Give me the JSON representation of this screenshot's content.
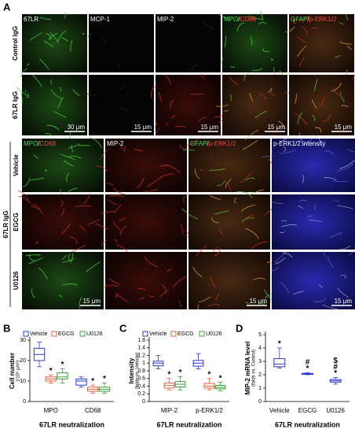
{
  "panel_a": {
    "label": "A",
    "top_columns": [
      [
        {
          "text": "67LR",
          "color": "#ffffff"
        }
      ],
      [
        {
          "text": "MCP-1",
          "color": "#ffffff"
        }
      ],
      [
        {
          "text": "MIP-2",
          "color": "#ffffff"
        }
      ],
      [
        {
          "text": "MPO",
          "color": "#40e040"
        },
        {
          "text": "/",
          "color": "#ffffff"
        },
        {
          "text": "CD68",
          "color": "#ff4040"
        }
      ],
      [
        {
          "text": "GFAP",
          "color": "#40e040"
        },
        {
          "text": "/",
          "color": "#ffffff"
        },
        {
          "text": "p-ERK1/2",
          "color": "#ff4040"
        }
      ]
    ],
    "top_rows": [
      "Control IgG",
      "67LR IgG"
    ],
    "top_scale_bars": [
      "30 μm",
      "15 μm",
      "15 μm",
      "15 μm",
      "15 μm"
    ],
    "bottom_columns": [
      [
        {
          "text": "MPO",
          "color": "#40e040"
        },
        {
          "text": "/",
          "color": "#ffffff"
        },
        {
          "text": "CD68",
          "color": "#ff4040"
        }
      ],
      [
        {
          "text": "MIP-2",
          "color": "#ffffff"
        }
      ],
      [
        {
          "text": "GFAP",
          "color": "#40e040"
        },
        {
          "text": "/",
          "color": "#ffffff"
        },
        {
          "text": "p-ERK1/2",
          "color": "#ff4040"
        }
      ],
      [
        {
          "text": "p-ERK1/2 intensity",
          "color": "#ffffff"
        }
      ]
    ],
    "bottom_group": "67LR IgG",
    "bottom_rows": [
      "Vehicle",
      "EGCG",
      "U0126"
    ],
    "bottom_scale_bars": [
      "15 μm",
      "15 μm",
      "15 μm"
    ]
  },
  "chart_data": [
    {
      "type": "box",
      "panel": "B",
      "ylabel": "Cell number",
      "ylabel_unit": "(/10⁵ μm²)",
      "xlabel": "67LR neutralization",
      "categories": [
        "MPO",
        "CD68"
      ],
      "ylim": [
        0,
        30
      ],
      "yticks": [
        0,
        10,
        20,
        30
      ],
      "series": [
        {
          "name": "Vehicle",
          "color": "#2a3cc8",
          "min": [
            17,
            7
          ],
          "q1": [
            20,
            8
          ],
          "median": [
            23,
            10
          ],
          "q3": [
            26,
            11
          ],
          "max": [
            29,
            12
          ]
        },
        {
          "name": "EGCG",
          "color": "#e0603c",
          "min": [
            9,
            4
          ],
          "q1": [
            10,
            5
          ],
          "median": [
            11,
            6
          ],
          "q3": [
            12,
            7
          ],
          "max": [
            13,
            8
          ],
          "significance": [
            "*",
            "*"
          ]
        },
        {
          "name": "U0126",
          "color": "#38a038",
          "min": [
            9,
            4
          ],
          "q1": [
            11,
            5
          ],
          "median": [
            12,
            6
          ],
          "q3": [
            14,
            7
          ],
          "max": [
            16,
            9
          ],
          "significance": [
            "*",
            "*"
          ]
        }
      ]
    },
    {
      "type": "box",
      "panel": "C",
      "ylabel": "Intensity",
      "ylabel_unit": "(folds vs. Vehicle)",
      "xlabel": "67LR neutralization",
      "categories": [
        "MIP-2",
        "p-ERK1/2"
      ],
      "ylim": [
        0,
        1.6
      ],
      "yticks": [
        0,
        0.2,
        0.4,
        0.6,
        0.8,
        1,
        1.2,
        1.4,
        1.6
      ],
      "series": [
        {
          "name": "Vehicle",
          "color": "#2a3cc8",
          "min": [
            0.85,
            0.85
          ],
          "q1": [
            0.93,
            0.92
          ],
          "median": [
            1,
            1
          ],
          "q3": [
            1.05,
            1.07
          ],
          "max": [
            1.2,
            1.25
          ]
        },
        {
          "name": "EGCG",
          "color": "#e0603c",
          "min": [
            0.3,
            0.3
          ],
          "q1": [
            0.35,
            0.35
          ],
          "median": [
            0.42,
            0.4
          ],
          "q3": [
            0.48,
            0.47
          ],
          "max": [
            0.6,
            0.6
          ],
          "significance": [
            "*",
            "*"
          ]
        },
        {
          "name": "U0126",
          "color": "#38a038",
          "min": [
            0.3,
            0.28
          ],
          "q1": [
            0.38,
            0.33
          ],
          "median": [
            0.45,
            0.37
          ],
          "q3": [
            0.52,
            0.42
          ],
          "max": [
            0.65,
            0.5
          ],
          "significance": [
            "*",
            "*"
          ]
        }
      ]
    },
    {
      "type": "box",
      "panel": "D",
      "ylabel": "MIP-2 mRNA level",
      "ylabel_unit": "(folds vs. Control)",
      "xlabel": "67LR neutralization",
      "categories": [
        "Vehicle",
        "EGCG",
        "U0126"
      ],
      "ylim": [
        0,
        5
      ],
      "yticks": [
        0,
        1,
        2,
        3,
        4,
        5
      ],
      "series": [
        {
          "color": "#2a3cc8",
          "min": [
            2.5,
            2,
            1.3
          ],
          "q1": [
            2.6,
            2.03,
            1.45
          ],
          "median": [
            2.8,
            2.07,
            1.55
          ],
          "q3": [
            3.2,
            2.1,
            1.65
          ],
          "max": [
            4,
            2.15,
            1.8
          ],
          "significance": [
            [
              "*"
            ],
            [
              "#",
              "*"
            ],
            [
              "$",
              "#",
              "*"
            ]
          ]
        }
      ]
    }
  ]
}
